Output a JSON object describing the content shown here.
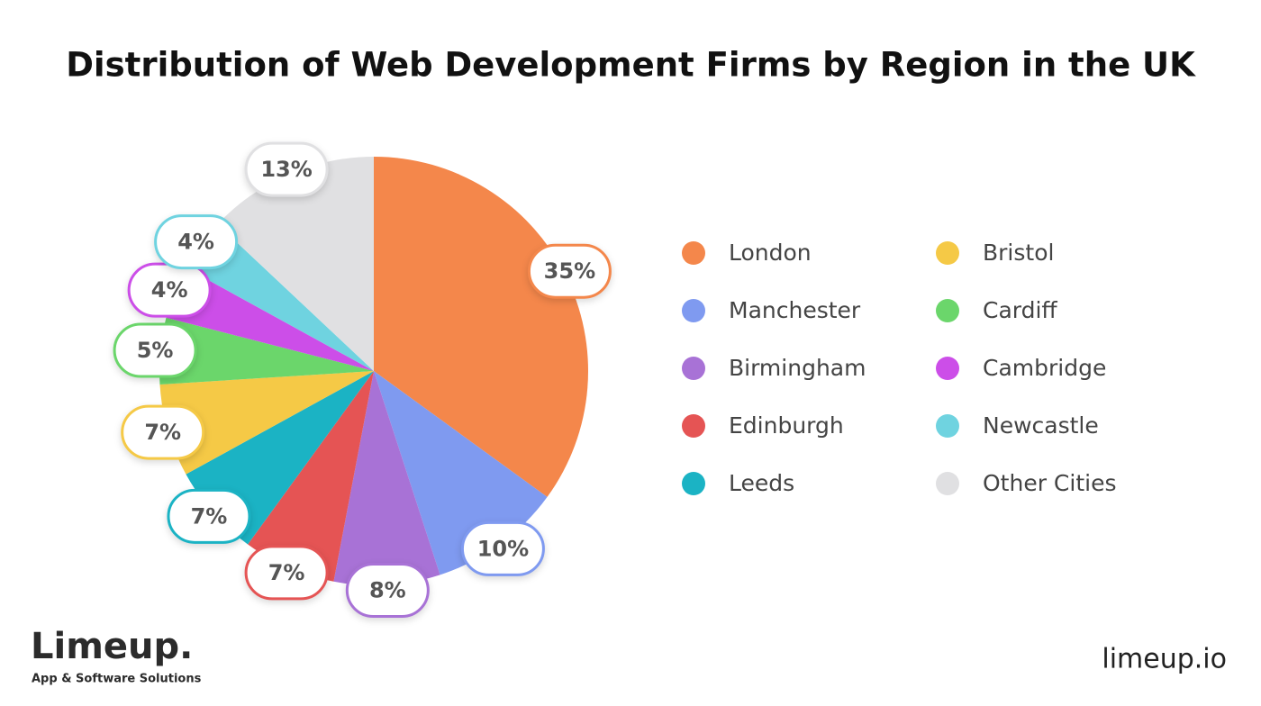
{
  "chart_data": {
    "type": "pie",
    "title": "Distribution of Web Development Firms by Region in the UK",
    "categories": [
      "London",
      "Manchester",
      "Birmingham",
      "Edinburgh",
      "Leeds",
      "Bristol",
      "Cardiff",
      "Cambridge",
      "Newcastle",
      "Other Cities"
    ],
    "values": [
      35,
      10,
      8,
      7,
      7,
      7,
      5,
      4,
      4,
      13
    ],
    "value_labels": [
      "35%",
      "10%",
      "8%",
      "7%",
      "7%",
      "7%",
      "5%",
      "4%",
      "4%",
      "13%"
    ],
    "colors": [
      "#f4874b",
      "#7f9af0",
      "#a872d6",
      "#e55454",
      "#1bb3c4",
      "#f5c946",
      "#6bd66b",
      "#cc4ee8",
      "#6fd3e0",
      "#e0e0e2"
    ]
  },
  "logo": {
    "name": "Limeup.",
    "tagline": "App & Software Solutions"
  },
  "website": "limeup.io"
}
